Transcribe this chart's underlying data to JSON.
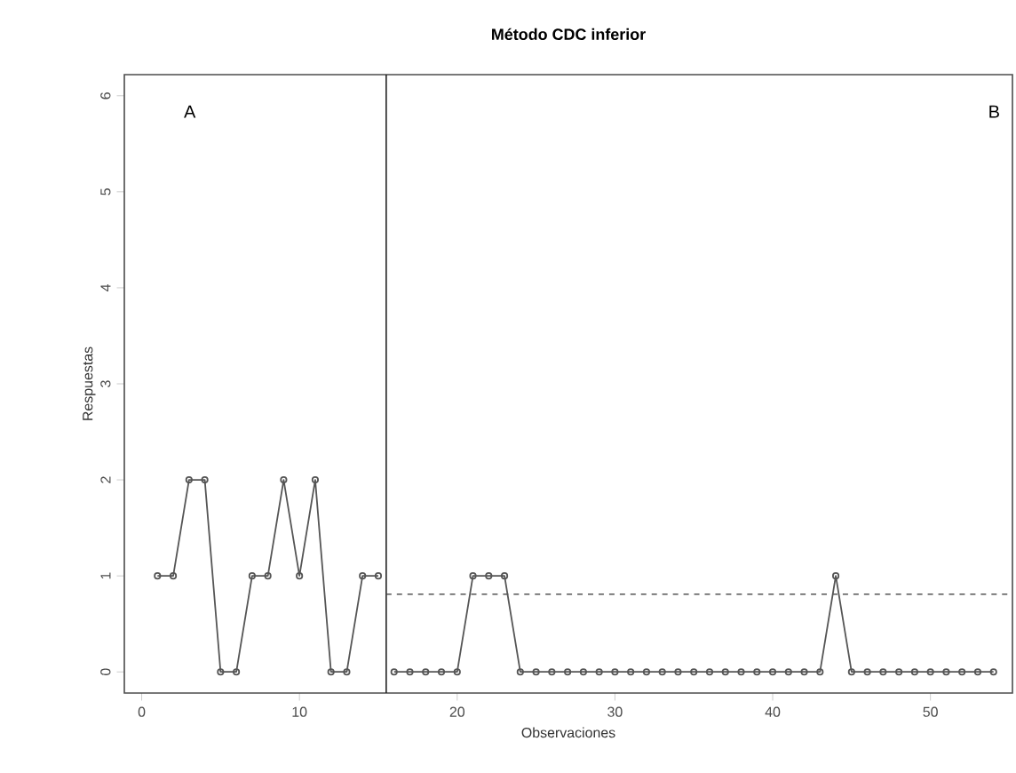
{
  "chart_data": {
    "type": "line",
    "title": "**Método CDC inferior**",
    "xlabel": "Observaciones",
    "ylabel": "Respuestas",
    "series": [
      {
        "color": "#555555",
        "x": [
          1,
          2,
          3,
          4,
          5,
          6,
          7,
          8,
          9,
          10,
          11,
          12,
          13,
          14,
          15
        ],
        "values": [
          1,
          1,
          2,
          2,
          0,
          0,
          1,
          1,
          2,
          1,
          2,
          0,
          0,
          1,
          1
        ]
      },
      {
        "color": "#555555",
        "x": [
          16,
          17,
          18,
          19,
          20,
          21,
          22,
          23,
          24,
          25,
          26,
          27,
          28,
          29,
          30,
          31,
          32,
          33,
          34,
          35,
          36,
          37,
          38,
          39,
          40,
          41,
          42,
          43,
          44,
          45,
          46,
          47,
          48,
          49,
          50,
          51,
          52,
          53,
          54
        ],
        "values": [
          0,
          0,
          0,
          0,
          0,
          1,
          1,
          1,
          0,
          0,
          0,
          0,
          0,
          0,
          0,
          0,
          0,
          0,
          0,
          0,
          0,
          0,
          0,
          0,
          0,
          0,
          0,
          0,
          1,
          0,
          0,
          0,
          0,
          0,
          0,
          0,
          0,
          0,
          0
        ]
      }
    ],
    "xlim": [
      -1.1,
      55.2
    ],
    "ylim": [
      -0.22,
      6.22
    ],
    "xticks": [
      0,
      10,
      20,
      30,
      40,
      50
    ],
    "yticks": [
      0,
      1,
      2,
      3,
      4,
      5,
      6
    ],
    "ref_lines": [
      {
        "axis": "x",
        "value": 15.5,
        "color": "#222222",
        "line_style": "solid"
      },
      {
        "axis": "y",
        "value": 0.81,
        "color": "#555555",
        "line_style": "dashed"
      }
    ],
    "annotations": [
      "A",
      "B"
    ],
    "marker": "circle",
    "line_style": "solid",
    "grid": false
  }
}
